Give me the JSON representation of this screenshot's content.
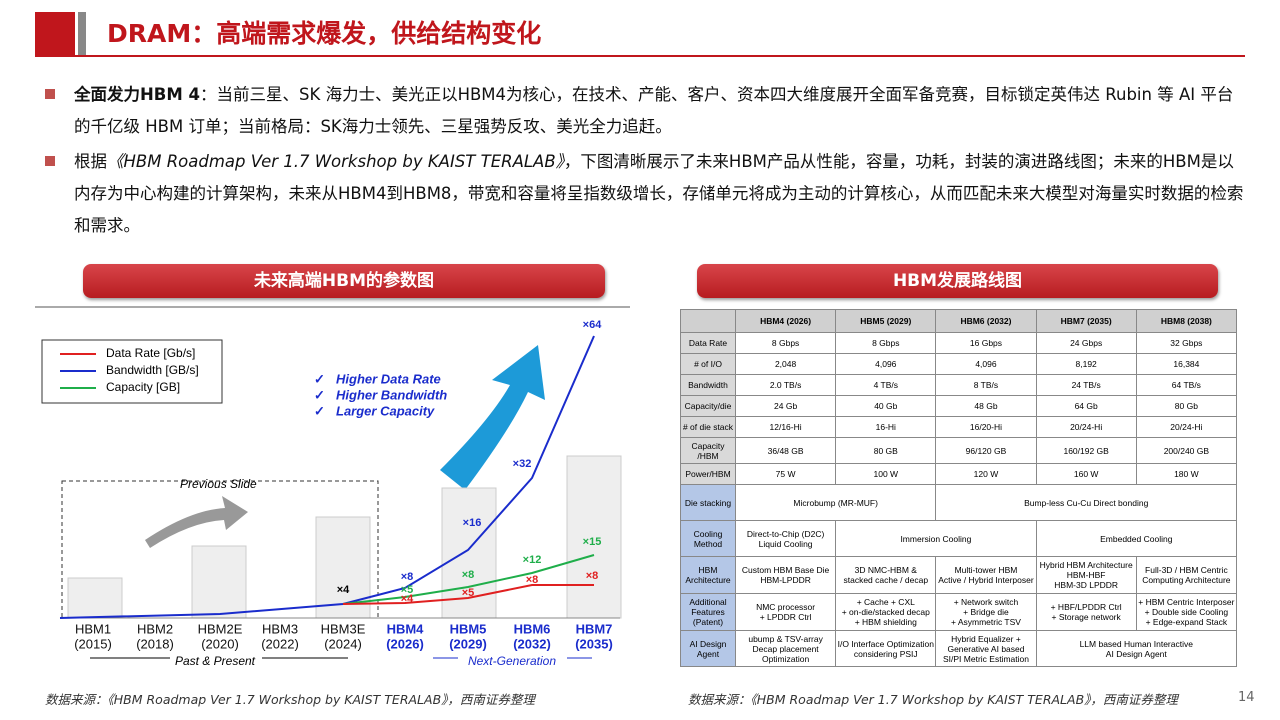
{
  "header": {
    "title": "DRAM：高端需求爆发，供给结构变化"
  },
  "bullets": [
    {
      "bold": "全面发力HBM 4",
      "text": "：当前三星、SK 海力士、美光正以HBM4为核心，在技术、产能、客户、资本四大维度展开全面军备竞赛，目标锁定英伟达 Rubin 等 AI 平台的千亿级 HBM 订单；当前格局：SK海力士领先、三星强势反攻、美光全力追赶。"
    },
    {
      "prefix": "根据",
      "italic": "《HBM Roadmap Ver 1.7 Workshop by KAIST TERALAB》",
      "text": "，下图清晰展示了未来HBM产品从性能，容量，功耗，封装的演进路线图；未来的HBM是以内存为中心构建的计算架构，未来从HBM4到HBM8，带宽和容量将呈指数级增长，存储单元将成为主动的计算核心，从而匹配未来大模型对海量实时数据的检索和需求。"
    }
  ],
  "left_panel": {
    "title": "未来高端HBM的参数图",
    "legend": [
      {
        "name": "Data Rate [Gb/s]",
        "color": "#e02020"
      },
      {
        "name": "Bandwidth [GB/s]",
        "color": "#1a2ccc"
      },
      {
        "name": "Capacity [GB]",
        "color": "#1fae4a"
      }
    ],
    "highlights": [
      "Higher Data Rate",
      "Higher Bandwidth",
      "Larger Capacity"
    ],
    "previous": "Previous Slide",
    "past": "Past & Present",
    "next": "Next-Generation",
    "generations": [
      {
        "name": "HBM1",
        "year": "(2015)"
      },
      {
        "name": "HBM2",
        "year": "(2018)"
      },
      {
        "name": "HBM2E",
        "year": "(2020)"
      },
      {
        "name": "HBM3",
        "year": "(2022)"
      },
      {
        "name": "HBM3E",
        "year": "(2024)"
      },
      {
        "name": "HBM4",
        "year": "(2026)"
      },
      {
        "name": "HBM5",
        "year": "(2029)"
      },
      {
        "name": "HBM6",
        "year": "(2032)"
      },
      {
        "name": "HBM7",
        "year": "(2035)"
      }
    ],
    "multipliers": [
      {
        "text": "×4",
        "color": "#000000"
      },
      {
        "text": "×8",
        "color": "#1a2ccc"
      },
      {
        "text": "×5",
        "color": "#1fae4a"
      },
      {
        "text": "×4",
        "color": "#e02020"
      },
      {
        "text": "×16",
        "color": "#1a2ccc"
      },
      {
        "text": "×8",
        "color": "#1fae4a"
      },
      {
        "text": "×5",
        "color": "#e02020"
      },
      {
        "text": "×32",
        "color": "#1a2ccc"
      },
      {
        "text": "×12",
        "color": "#1fae4a"
      },
      {
        "text": "×8",
        "color": "#e02020"
      },
      {
        "text": "×64",
        "color": "#1a2ccc"
      },
      {
        "text": "×15",
        "color": "#1fae4a"
      },
      {
        "text": "×8",
        "color": "#e02020"
      }
    ]
  },
  "right_panel": {
    "title": "HBM发展路线图",
    "table": {
      "header": [
        "HBM4 (2026)",
        "HBM5 (2029)",
        "HBM6 (2032)",
        "HBM7 (2035)",
        "HBM8 (2038)"
      ],
      "rows": [
        {
          "label": "Data Rate",
          "cells": [
            "8 Gbps",
            "8 Gbps",
            "16 Gbps",
            "24 Gbps",
            "32 Gbps"
          ]
        },
        {
          "label": "# of I/O",
          "cells": [
            "2,048",
            "4,096",
            "4,096",
            "8,192",
            "16,384"
          ]
        },
        {
          "label": "Bandwidth",
          "cells": [
            "2.0 TB/s",
            "4 TB/s",
            "8 TB/s",
            "24 TB/s",
            "64 TB/s"
          ]
        },
        {
          "label": "Capacity/die",
          "cells": [
            "24 Gb",
            "40 Gb",
            "48 Gb",
            "64 Gb",
            "80 Gb"
          ]
        },
        {
          "label": "# of die stack",
          "cells": [
            "12/16-Hi",
            "16-Hi",
            "16/20-Hi",
            "20/24-Hi",
            "20/24-Hi"
          ]
        },
        {
          "label": "Capacity\n/HBM",
          "cells": [
            "36/48 GB",
            "80 GB",
            "96/120 GB",
            "160/192 GB",
            "200/240 GB"
          ]
        },
        {
          "label": "Power/HBM",
          "cells": [
            "75 W",
            "100 W",
            "120 W",
            "160 W",
            "180 W"
          ]
        },
        {
          "label": "Die stacking",
          "cells": [
            "Microbump (MR-MUF)",
            "Bump-less Cu-Cu Direct bonding"
          ]
        },
        {
          "label": "Cooling\nMethod",
          "cells": [
            "Direct-to-Chip (D2C)\nLiquid Cooling",
            "Immersion Cooling",
            "Embedded Cooling"
          ]
        },
        {
          "label": "HBM\nArchitecture",
          "cells": [
            "Custom HBM Base Die\nHBM-LPDDR",
            "3D NMC-HBM &\nstacked cache / decap",
            "Multi-tower HBM\nActive / Hybrid Interposer",
            "Hybrid HBM Architecture\nHBM-HBF\nHBM-3D LPDDR",
            "Full-3D / HBM Centric\nComputing Architecture"
          ]
        },
        {
          "label": "Additional\nFeatures\n(Patent)",
          "cells": [
            "NMC processor\n+ LPDDR Ctrl",
            "+ Cache + CXL\n+ on-die/stacked decap\n+ HBM shielding",
            "+ Network switch\n+ Bridge die\n+ Asymmetric TSV",
            "+ HBF/LPDDR Ctrl\n+ Storage network",
            "+ HBM Centric Interposer\n+ Double side Cooling\n+ Edge-expand Stack"
          ]
        },
        {
          "label": "AI Design\nAgent",
          "cells": [
            "ubump & TSV-array\nDecap placement\nOptimization",
            "I/O Interface Optimization\nconsidering PSIJ",
            "Hybrid Equalizer +\nGenerative AI based\nSI/PI Metric Estimation",
            "LLM based Human Interactive\nAI Design Agent"
          ]
        }
      ]
    }
  },
  "footer": {
    "source_left": "数据来源：《HBM Roadmap Ver 1.7 Workshop by KAIST TERALAB》，西南证券整理",
    "source_right": "数据来源：《HBM Roadmap Ver 1.7 Workshop by KAIST TERALAB》，西南证券整理",
    "page": "14"
  }
}
